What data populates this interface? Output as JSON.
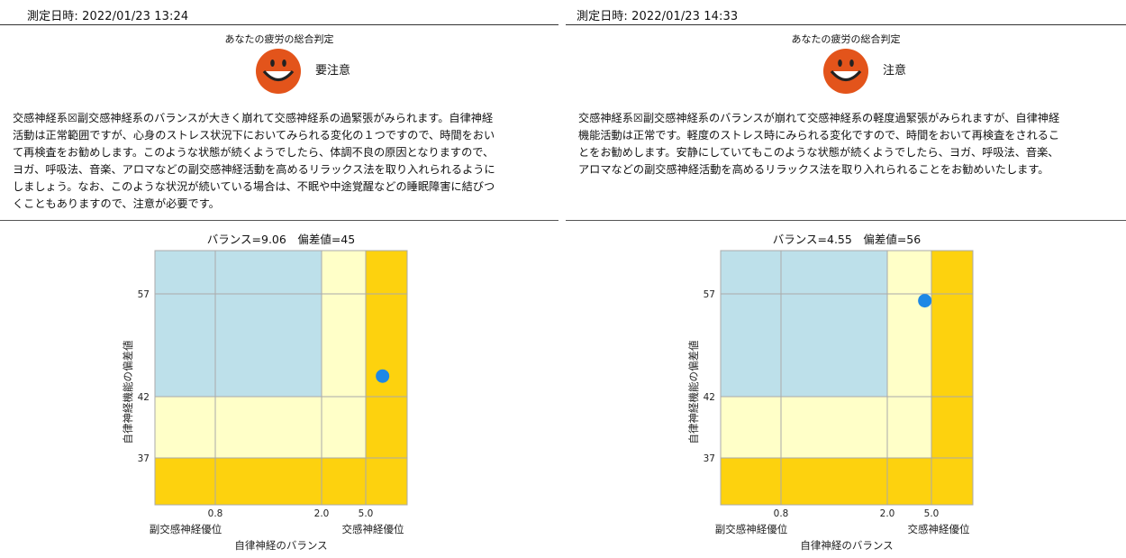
{
  "panels": [
    {
      "measurement": "測定日時: 2022/01/23 13:24",
      "verdict_title": "あなたの疲労の総合判定",
      "verdict": "要注意",
      "smiley_color": "#e3541b",
      "description_lines": [
        "交感神経系☒副交感神経系のバランスが大きく崩れて交感神経系の過緊張がみられます。自律神経",
        "活動は正常範囲ですが、心身のストレス状況下においてみられる変化の１つですので、時間をおい",
        "て再検査をお勧めします。このような状態が続くようでしたら、体調不良の原因となりますので、",
        "ヨガ、呼吸法、音楽、アロマなどの副交感神経活動を高めるリラックス法を取り入れられるように",
        "しましょう。なお、このような状況が続いている場合は、不眠や中途覚醒などの睡眠障害に結びつ",
        "くこともありますので、注意が必要です。"
      ],
      "chart_data": {
        "type": "scatter",
        "title": "バランス=9.06　偏差値=45",
        "xlabel": "自律神経のバランス",
        "ylabel": "自律神経機能の偏差値",
        "x_ticks": [
          "0.8",
          "2.0",
          "5.0"
        ],
        "y_ticks": [
          "57",
          "42",
          "37"
        ],
        "x_side_labels": {
          "left": "副交感神経優位",
          "right": "交感神経優位"
        },
        "point": {
          "balance": 9.06,
          "deviation": 45
        },
        "colors": {
          "blue": "#bde0ea",
          "yellow": "#ffffc8",
          "orange": "#fdd20e",
          "point": "#1e88e5",
          "grid": "#aaaaaa"
        }
      }
    },
    {
      "measurement": "測定日時: 2022/01/23 14:33",
      "verdict_title": "あなたの疲労の総合判定",
      "verdict": "注意",
      "smiley_color": "#e3541b",
      "description_lines": [
        "交感神経系☒副交感神経系のバランスが崩れて交感神経系の軽度過緊張がみられますが、自律神経",
        "機能活動は正常です。軽度のストレス時にみられる変化ですので、時間をおいて再検査をされるこ",
        "とをお勧めします。安静にしていてもこのような状態が続くようでしたら、ヨガ、呼吸法、音楽、",
        "アロマなどの副交感神経活動を高めるリラックス法を取り入れられることをお勧めいたします。"
      ],
      "chart_data": {
        "type": "scatter",
        "title": "バランス=4.55　偏差値=56",
        "xlabel": "自律神経のバランス",
        "ylabel": "自律神経機能の偏差値",
        "x_ticks": [
          "0.8",
          "2.0",
          "5.0"
        ],
        "y_ticks": [
          "57",
          "42",
          "37"
        ],
        "x_side_labels": {
          "left": "副交感神経優位",
          "right": "交感神経優位"
        },
        "point": {
          "balance": 4.55,
          "deviation": 56
        },
        "colors": {
          "blue": "#bde0ea",
          "yellow": "#ffffc8",
          "orange": "#fdd20e",
          "point": "#1e88e5",
          "grid": "#aaaaaa"
        }
      }
    }
  ]
}
